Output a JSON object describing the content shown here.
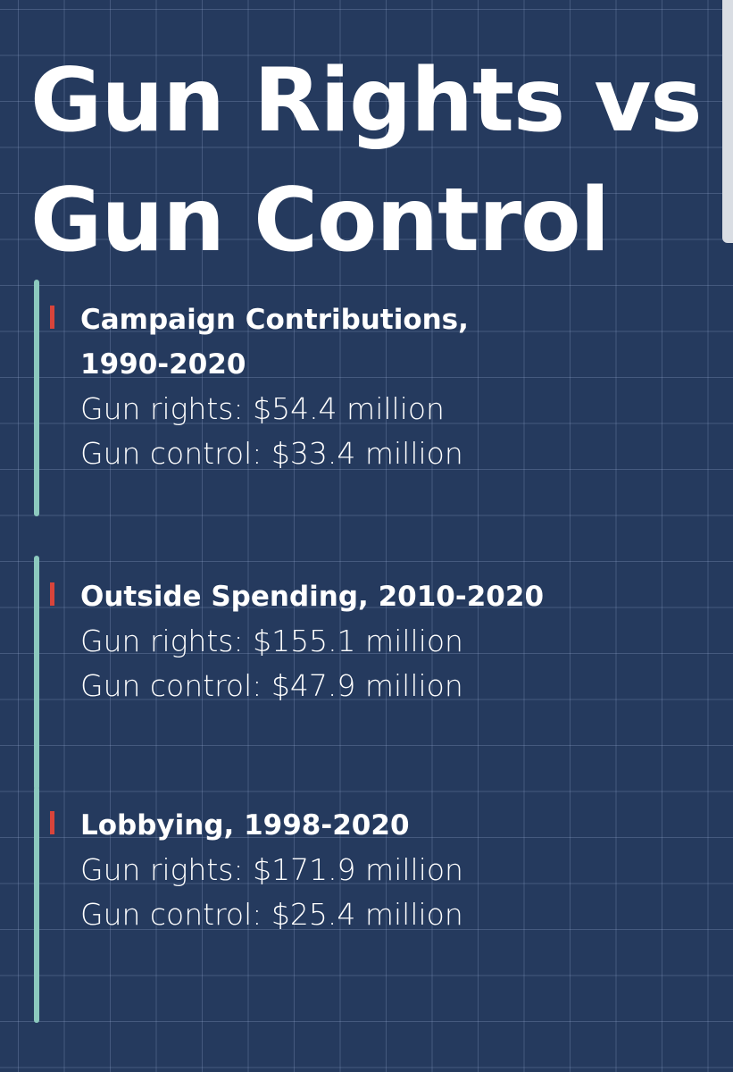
{
  "title": "Gun Rights vs Gun Control",
  "sections": [
    {
      "heading": "Campaign Contributions, 1990-2020",
      "lines": [
        "Gun rights: $54.4 million",
        "Gun control: $33.4 million"
      ]
    },
    {
      "heading": "Outside Spending, 2010-2020",
      "lines": [
        "Gun rights: $155.1 million",
        "Gun control: $47.9 million"
      ]
    },
    {
      "heading": "Lobbying, 1998-2020",
      "lines": [
        "Gun rights: $171.9 million",
        "Gun control: $25.4 million"
      ]
    }
  ]
}
